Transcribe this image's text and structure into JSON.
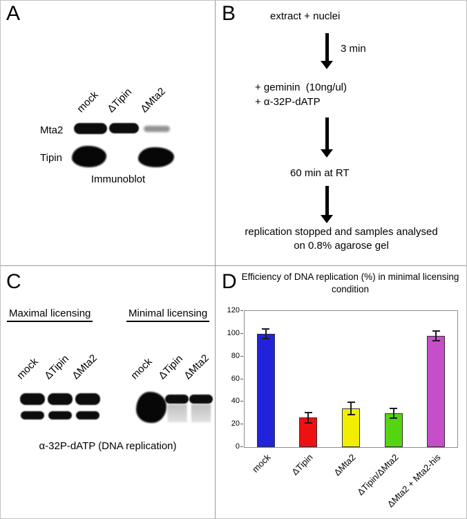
{
  "figure": {
    "panel_a": {
      "label": "A",
      "lane_labels": [
        "mock",
        "ΔTipin",
        "ΔMta2"
      ],
      "row_labels": [
        "Mta2",
        "Tipin"
      ],
      "caption": "Immunoblot"
    },
    "panel_b": {
      "label": "B",
      "step1": "extract + nuclei",
      "arrow1_label": "3 min",
      "step2_line1": "+ geminin  (10ng/ul)",
      "step2_line2": "+ α-32P-dATP",
      "step3": "60 min at RT",
      "step4_line1": "replication stopped and samples analysed",
      "step4_line2": "on 0.8% agarose gel"
    },
    "panel_c": {
      "label": "C",
      "group1_title": "Maximal licensing",
      "group2_title": "Minimal licensing",
      "group1_lanes": [
        "mock",
        "ΔTipin",
        "ΔMta2"
      ],
      "group2_lanes": [
        "mock",
        "ΔTipin",
        "ΔMta2"
      ],
      "caption": "α-32P-dATP (DNA replication)"
    },
    "panel_d": {
      "label": "D"
    }
  },
  "chart_data": {
    "type": "bar",
    "title": "Efficiency of DNA replication (%) in minimal licensing condition",
    "categories": [
      "mock",
      "ΔTipin",
      "ΔMta2",
      "ΔTipin/ΔMta2",
      "ΔMta2 + Mta2-his"
    ],
    "values": [
      100,
      26,
      34,
      30,
      98
    ],
    "error_bars": [
      5,
      5,
      6,
      5,
      5
    ],
    "bar_colors": [
      "#2222dd",
      "#ee1111",
      "#f2ee00",
      "#55d411",
      "#c64ec8"
    ],
    "ylim": [
      0,
      120
    ],
    "yticks": [
      0,
      20,
      40,
      60,
      80,
      100,
      120
    ],
    "ylabel": "",
    "xlabel": "",
    "grid": false,
    "legend": "none"
  }
}
